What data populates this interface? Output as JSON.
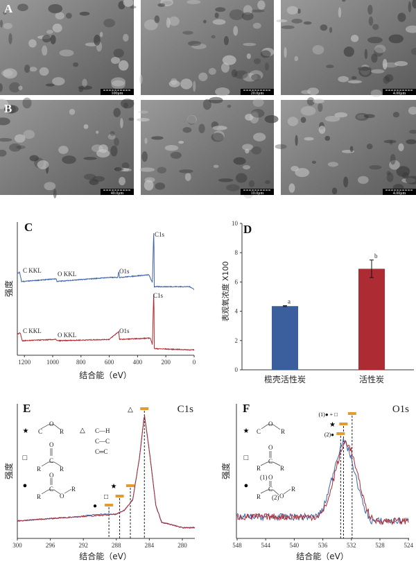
{
  "sem": {
    "rows": [
      {
        "label": "A",
        "scale_bars": [
          "100μm",
          "20.0μm",
          "4.00μm"
        ]
      },
      {
        "label": "B",
        "scale_bars": [
          "40.0μm",
          "10.0μm",
          "4.00μm"
        ]
      }
    ]
  },
  "chart_data": [
    {
      "panel": "C",
      "type": "line",
      "xlabel": "结合能（eV）",
      "ylabel": "强度",
      "xlim": [
        1250,
        0
      ],
      "xticks": [
        "1200",
        "1000",
        "800",
        "600",
        "400",
        "200",
        "0"
      ],
      "grid": false,
      "annotations": [
        "C KKL",
        "O KKL",
        "O1s",
        "C1s"
      ],
      "series": [
        {
          "color": "#3d63a8",
          "x": [
            1250,
            1235,
            1220,
            1200,
            975,
            970,
            600,
            540,
            533,
            528,
            320,
            295,
            285,
            282,
            30,
            0
          ],
          "y": [
            0.62,
            0.63,
            0.56,
            0.56,
            0.58,
            0.56,
            0.59,
            0.59,
            0.64,
            0.59,
            0.61,
            0.55,
            0.97,
            0.52,
            0.52,
            0.5
          ]
        },
        {
          "color": "#b0282f",
          "x": [
            1250,
            1230,
            1215,
            975,
            970,
            600,
            533,
            528,
            310,
            295,
            285,
            282,
            0
          ],
          "y": [
            0.16,
            0.17,
            0.11,
            0.12,
            0.11,
            0.12,
            0.18,
            0.12,
            0.13,
            0.08,
            0.51,
            0.05,
            0.04
          ]
        }
      ]
    },
    {
      "panel": "D",
      "type": "bar",
      "ylabel": "表观氧浓度  X100",
      "ylim": [
        0,
        10
      ],
      "yticks": [
        "0",
        "2",
        "4",
        "6",
        "8",
        "10"
      ],
      "categories": [
        "榄壳活性炭",
        "活性炭"
      ],
      "values": [
        4.35,
        6.9
      ],
      "errors": [
        0.03,
        0.6
      ],
      "significance": [
        "a",
        "b"
      ],
      "colors": [
        "#3b5e9c",
        "#ad2b32"
      ]
    },
    {
      "panel": "E",
      "type": "line",
      "title": "C1s",
      "xlabel": "结合能（eV）",
      "ylabel": "强度",
      "xlim": [
        300,
        278.5
      ],
      "xticks": [
        "300",
        "296",
        "292",
        "288",
        "284",
        "280"
      ],
      "series": [
        {
          "color": "#3d63a8",
          "x": [
            300,
            293,
            290,
            288,
            287,
            286,
            285.2,
            284.6,
            284,
            283.2,
            282.5,
            280,
            278.5
          ],
          "y": [
            0.13,
            0.16,
            0.18,
            0.18,
            0.21,
            0.29,
            0.6,
            0.92,
            0.65,
            0.24,
            0.12,
            0.08,
            0.08
          ]
        },
        {
          "color": "#b0282f",
          "x": [
            300,
            293,
            290,
            288,
            287,
            286,
            285.2,
            284.6,
            284,
            283.2,
            282.5,
            280,
            278.5
          ],
          "y": [
            0.13,
            0.16,
            0.17,
            0.18,
            0.21,
            0.29,
            0.6,
            0.92,
            0.65,
            0.24,
            0.12,
            0.08,
            0.08
          ]
        }
      ],
      "markers": [
        {
          "symbol": "△",
          "x": 284.6
        },
        {
          "symbol": "★",
          "x": 286.3
        },
        {
          "symbol": "□",
          "x": 287.6
        },
        {
          "symbol": "●",
          "x": 288.9
        }
      ],
      "legend": {
        "star": {
          "symbol": "★",
          "atoms": [
            "C",
            "O",
            "R"
          ]
        },
        "triangle": {
          "symbol": "△",
          "lines": [
            [
              "C",
              "—H"
            ],
            [
              "C",
              "—C"
            ],
            [
              "C",
              "═C"
            ]
          ]
        },
        "square": {
          "symbol": "□",
          "atoms": [
            "O",
            "C",
            "R",
            "R"
          ]
        },
        "circle": {
          "symbol": "●",
          "atoms": [
            "O",
            "C",
            "R",
            "O",
            "R"
          ]
        }
      }
    },
    {
      "panel": "F",
      "type": "line",
      "title": "O1s",
      "xlabel": "结合能（eV）",
      "ylabel": "强度",
      "xlim": [
        548,
        524
      ],
      "xticks": [
        "548",
        "544",
        "540",
        "536",
        "532",
        "528",
        "524"
      ],
      "series": [
        {
          "color": "#3d63a8",
          "x": [
            548,
            537,
            536,
            535,
            534,
            533.5,
            533.2,
            532.3,
            531.3,
            530.3,
            529.3,
            524
          ],
          "y": [
            0.16,
            0.16,
            0.21,
            0.39,
            0.6,
            0.68,
            0.73,
            0.65,
            0.44,
            0.24,
            0.13,
            0.13
          ]
        },
        {
          "color": "#b0282f",
          "x": [
            548,
            537,
            536,
            535,
            534,
            533.2,
            532.8,
            532,
            531,
            530,
            529,
            524
          ],
          "y": [
            0.16,
            0.16,
            0.19,
            0.33,
            0.55,
            0.68,
            0.73,
            0.65,
            0.44,
            0.24,
            0.13,
            0.13
          ]
        }
      ],
      "markers": [
        {
          "symbol": "(1)● + □",
          "x": 531.9
        },
        {
          "symbol": "★",
          "x": 533.1
        },
        {
          "symbol": "(2)●",
          "x": 533.5
        }
      ],
      "legend": {
        "star": {
          "symbol": "★",
          "atoms": [
            "C",
            "O",
            "R"
          ]
        },
        "square": {
          "symbol": "□",
          "atoms": [
            "O",
            "C",
            "R",
            "R"
          ]
        },
        "circle": {
          "symbol": "●",
          "atoms": [
            "(1)",
            "O",
            "C",
            "R",
            "(2)",
            "O",
            "R"
          ]
        }
      }
    }
  ]
}
